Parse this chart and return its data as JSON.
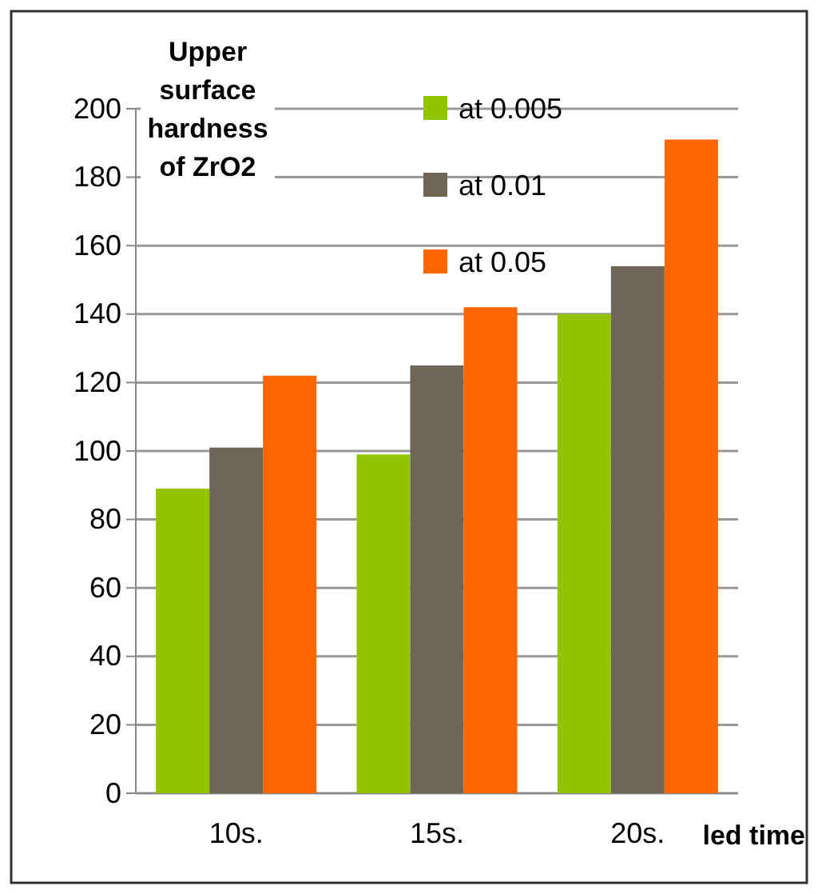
{
  "chart_data": {
    "type": "bar",
    "ylabel": "Upper surface hardness of ZrO2",
    "xlabel": "led time",
    "categories": [
      "10s.",
      "15s.",
      "20s."
    ],
    "series": [
      {
        "name": "at 0.005",
        "color": "#92c500",
        "values": [
          89,
          99,
          140
        ]
      },
      {
        "name": "at 0.01",
        "color": "#706657",
        "values": [
          101,
          125,
          154
        ]
      },
      {
        "name": "at 0.05",
        "color": "#ff6600",
        "values": [
          122,
          142,
          191
        ]
      }
    ],
    "ylim": [
      0,
      200
    ],
    "yticks": [
      0,
      20,
      40,
      60,
      80,
      100,
      120,
      140,
      160,
      180,
      200
    ],
    "grid": "y",
    "legend": "top"
  }
}
